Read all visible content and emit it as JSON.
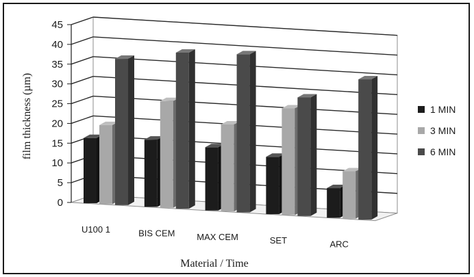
{
  "chart_data": {
    "type": "bar",
    "title": "",
    "xlabel": "Material / Time",
    "ylabel": "film thickness  (µm)",
    "ylim": [
      0,
      45
    ],
    "yticks": [
      0,
      5,
      10,
      15,
      20,
      25,
      30,
      35,
      40,
      45
    ],
    "grid": true,
    "legend_position": "right",
    "categories": [
      "U100 1",
      "BIS CEM",
      "MAX CEM",
      "SET",
      "ARC"
    ],
    "series": [
      {
        "name": "1 MIN",
        "color": "#1c1c1c",
        "values": [
          16.5,
          17,
          16,
          14.5,
          7.5
        ]
      },
      {
        "name": "3 MIN",
        "color": "#a8a8a8",
        "values": [
          20,
          27,
          22,
          27,
          12
        ]
      },
      {
        "name": "6 MIN",
        "color": "#4a4a4a",
        "values": [
          37,
          39.5,
          40,
          30,
          35.5
        ]
      }
    ]
  }
}
